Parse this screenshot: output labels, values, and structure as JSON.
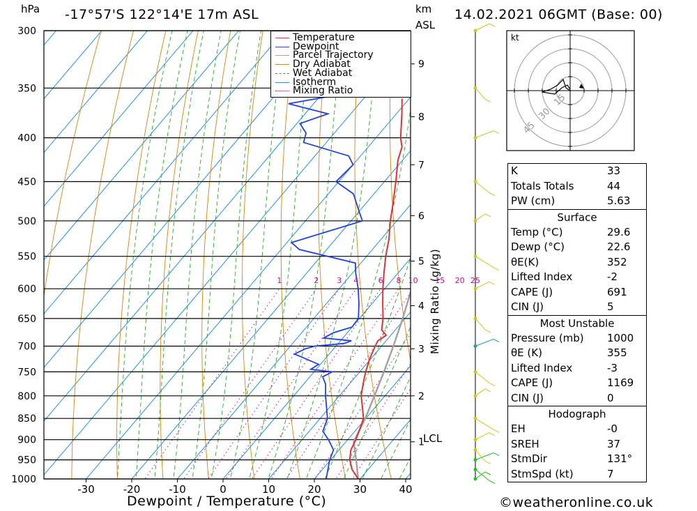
{
  "header": {
    "location": "-17°57'S 122°14'E 17m ASL",
    "datetime": "14.02.2021 06GMT (Base: 00)",
    "hpa_label": "hPa",
    "km_label": "km",
    "asl_label": "ASL",
    "credit": "©weatheronline.co.uk"
  },
  "legend": [
    {
      "label": "Temperature",
      "color": "#e03030",
      "style": "solid"
    },
    {
      "label": "Dewpoint",
      "color": "#2040e0",
      "style": "solid"
    },
    {
      "label": "Parcel Trajectory",
      "color": "#a0a0a0",
      "style": "solid"
    },
    {
      "label": "Dry Adiabat",
      "color": "#e08000",
      "style": "solid"
    },
    {
      "label": "Wet Adiabat",
      "color": "#20b020",
      "style": "dashed"
    },
    {
      "label": "Isotherm",
      "color": "#2090e0",
      "style": "solid"
    },
    {
      "label": "Mixing Ratio",
      "color": "#d000a0",
      "style": "dotted"
    }
  ],
  "chart_data": {
    "type": "skew-t",
    "xlabel": "Dewpoint / Temperature (°C)",
    "x_ticks": [
      -30,
      -20,
      -10,
      0,
      10,
      20,
      30,
      40
    ],
    "pressure_levels": [
      300,
      350,
      400,
      450,
      500,
      550,
      600,
      650,
      700,
      750,
      800,
      850,
      900,
      950,
      1000
    ],
    "km_ticks": [
      {
        "label": "1",
        "p": 905
      },
      {
        "label": "2",
        "p": 800
      },
      {
        "label": "3",
        "p": 705
      },
      {
        "label": "4",
        "p": 628
      },
      {
        "label": "5",
        "p": 557
      },
      {
        "label": "6",
        "p": 493
      },
      {
        "label": "7",
        "p": 430
      },
      {
        "label": "8",
        "p": 378
      },
      {
        "label": "9",
        "p": 328
      }
    ],
    "lcl_label": "LCL",
    "lcl_p": 905,
    "mixing_ratio_axis_label": "Mixing Ratio (g/kg)",
    "mixing_ratio_labels": [
      "1",
      "2",
      "3",
      "4",
      "6",
      "8",
      "10",
      "15",
      "20",
      "25"
    ],
    "mixing_ratio_values": [
      1,
      2,
      3,
      4,
      6,
      8,
      10,
      15,
      20,
      25
    ],
    "temperature": [
      {
        "p": 1000,
        "t": 29.6
      },
      {
        "p": 975,
        "t": 26.5
      },
      {
        "p": 950,
        "t": 24.2
      },
      {
        "p": 925,
        "t": 22.6
      },
      {
        "p": 900,
        "t": 21.8
      },
      {
        "p": 875,
        "t": 20.7
      },
      {
        "p": 850,
        "t": 19.5
      },
      {
        "p": 825,
        "t": 17.2
      },
      {
        "p": 800,
        "t": 14.8
      },
      {
        "p": 775,
        "t": 13.0
      },
      {
        "p": 750,
        "t": 11.3
      },
      {
        "p": 725,
        "t": 9.8
      },
      {
        "p": 700,
        "t": 8.6
      },
      {
        "p": 690,
        "t": 8.2
      },
      {
        "p": 680,
        "t": 9.0
      },
      {
        "p": 670,
        "t": 7.0
      },
      {
        "p": 650,
        "t": 5.2
      },
      {
        "p": 625,
        "t": 2.4
      },
      {
        "p": 600,
        "t": -0.4
      },
      {
        "p": 575,
        "t": -3.1
      },
      {
        "p": 550,
        "t": -5.8
      },
      {
        "p": 525,
        "t": -8.3
      },
      {
        "p": 500,
        "t": -11.4
      },
      {
        "p": 475,
        "t": -14.3
      },
      {
        "p": 450,
        "t": -17.5
      },
      {
        "p": 425,
        "t": -21.0
      },
      {
        "p": 410,
        "t": -22.6
      },
      {
        "p": 400,
        "t": -24.6
      },
      {
        "p": 375,
        "t": -28.8
      },
      {
        "p": 360,
        "t": -31.6
      }
    ],
    "dewpoint": [
      {
        "p": 1000,
        "t": 22.6
      },
      {
        "p": 950,
        "t": 19.8
      },
      {
        "p": 925,
        "t": 18.8
      },
      {
        "p": 900,
        "t": 15.8
      },
      {
        "p": 880,
        "t": 13.0
      },
      {
        "p": 850,
        "t": 11.6
      },
      {
        "p": 800,
        "t": 7.0
      },
      {
        "p": 775,
        "t": 4.8
      },
      {
        "p": 760,
        "t": 2.8
      },
      {
        "p": 750,
        "t": 4.0
      },
      {
        "p": 745,
        "t": -1.2
      },
      {
        "p": 735,
        "t": -0.4
      },
      {
        "p": 715,
        "t": -7.6
      },
      {
        "p": 705,
        "t": -6.2
      },
      {
        "p": 700,
        "t": -4.6
      },
      {
        "p": 695,
        "t": 1.3
      },
      {
        "p": 690,
        "t": 2.4
      },
      {
        "p": 685,
        "t": -4.2
      },
      {
        "p": 675,
        "t": -3.0
      },
      {
        "p": 665,
        "t": 0.0
      },
      {
        "p": 650,
        "t": -0.2
      },
      {
        "p": 625,
        "t": -2.8
      },
      {
        "p": 600,
        "t": -5.8
      },
      {
        "p": 575,
        "t": -9.3
      },
      {
        "p": 560,
        "t": -11.2
      },
      {
        "p": 540,
        "t": -26.0
      },
      {
        "p": 530,
        "t": -29.0
      },
      {
        "p": 500,
        "t": -17.5
      },
      {
        "p": 490,
        "t": -19.5
      },
      {
        "p": 465,
        "t": -24.5
      },
      {
        "p": 450,
        "t": -30.6
      },
      {
        "p": 430,
        "t": -30.0
      },
      {
        "p": 420,
        "t": -32.6
      },
      {
        "p": 405,
        "t": -45.0
      },
      {
        "p": 395,
        "t": -46.2
      },
      {
        "p": 385,
        "t": -49.3
      },
      {
        "p": 375,
        "t": -45.0
      },
      {
        "p": 365,
        "t": -55.5
      },
      {
        "p": 355,
        "t": -44.7
      },
      {
        "p": 350,
        "t": -51.0
      },
      {
        "p": 340,
        "t": -58.0
      },
      {
        "p": 325,
        "t": -62.0
      },
      {
        "p": 300,
        "t": -70.0
      }
    ],
    "parcel": [
      {
        "p": 1000,
        "t": 29.6
      },
      {
        "p": 950,
        "t": 25.6
      },
      {
        "p": 905,
        "t": 21.7
      },
      {
        "p": 850,
        "t": 19.9
      },
      {
        "p": 800,
        "t": 17.7
      },
      {
        "p": 750,
        "t": 15.3
      },
      {
        "p": 700,
        "t": 12.6
      },
      {
        "p": 650,
        "t": 9.5
      },
      {
        "p": 600,
        "t": 5.9
      },
      {
        "p": 550,
        "t": 1.6
      },
      {
        "p": 500,
        "t": -3.6
      },
      {
        "p": 450,
        "t": -9.9
      },
      {
        "p": 400,
        "t": -17.8
      },
      {
        "p": 360,
        "t": -25.5
      }
    ],
    "wind_barb_pressures": [
      1000,
      975,
      950,
      925,
      900,
      850,
      800,
      750,
      700,
      650,
      600,
      550,
      500,
      450,
      400,
      350,
      300
    ],
    "hodograph": {
      "unit_label": "kt",
      "ring_labels": [
        "15",
        "30",
        "45"
      ]
    }
  },
  "indices": {
    "top": [
      {
        "label": "K",
        "value": "33"
      },
      {
        "label": "Totals Totals",
        "value": "44"
      },
      {
        "label": "PW (cm)",
        "value": "5.63"
      }
    ],
    "surface": {
      "title": "Surface",
      "rows": [
        {
          "label": "Temp (°C)",
          "value": "29.6"
        },
        {
          "label": "Dewp (°C)",
          "value": "22.6"
        },
        {
          "label": "θE(K)",
          "value": "352"
        },
        {
          "label": "Lifted Index",
          "value": "-2"
        },
        {
          "label": "CAPE (J)",
          "value": "691"
        },
        {
          "label": "CIN (J)",
          "value": "5"
        }
      ]
    },
    "most_unstable": {
      "title": "Most Unstable",
      "rows": [
        {
          "label": "Pressure (mb)",
          "value": "1000"
        },
        {
          "label": "θE (K)",
          "value": "355"
        },
        {
          "label": "Lifted Index",
          "value": "-3"
        },
        {
          "label": "CAPE (J)",
          "value": "1169"
        },
        {
          "label": "CIN (J)",
          "value": "0"
        }
      ]
    },
    "hodograph": {
      "title": "Hodograph",
      "rows": [
        {
          "label": "EH",
          "value": "-0"
        },
        {
          "label": "SREH",
          "value": "37"
        },
        {
          "label": "StmDir",
          "value": "131°"
        },
        {
          "label": "StmSpd (kt)",
          "value": "7"
        }
      ]
    }
  }
}
